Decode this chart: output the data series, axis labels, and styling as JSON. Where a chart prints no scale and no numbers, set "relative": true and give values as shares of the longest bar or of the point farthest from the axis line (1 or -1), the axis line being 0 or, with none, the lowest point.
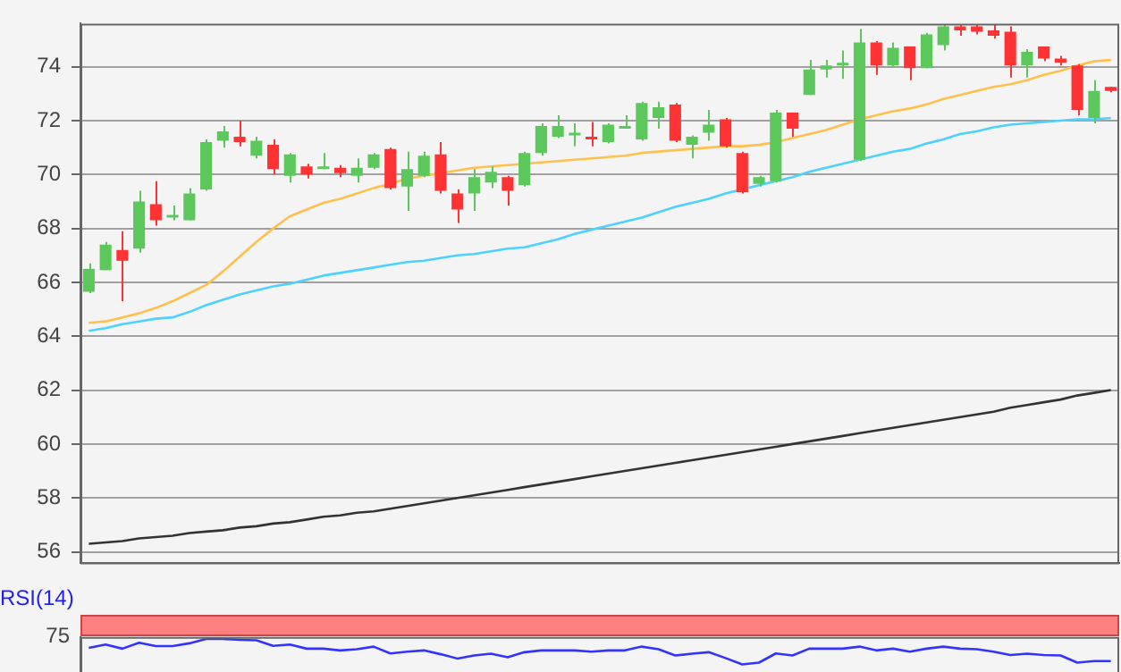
{
  "chart_data": [
    {
      "type": "candlestick",
      "categories": [
        null,
        null,
        null,
        null,
        null,
        null,
        null,
        null,
        null,
        null,
        null,
        null,
        null,
        null,
        null,
        null,
        null,
        null,
        null,
        null,
        null,
        null,
        null,
        null,
        null,
        null,
        null,
        null,
        null,
        null,
        null,
        null,
        null,
        null,
        null,
        null,
        null,
        null,
        null,
        null,
        null,
        null,
        null,
        null,
        null,
        null,
        null,
        null,
        null,
        null,
        null,
        null,
        null,
        null,
        null,
        null,
        null,
        null,
        null,
        null,
        null,
        null
      ],
      "ohlc": [
        [
          65.65,
          66.7,
          65.6,
          66.5
        ],
        [
          66.45,
          67.5,
          66.45,
          67.4
        ],
        [
          67.2,
          67.9,
          65.3,
          66.8
        ],
        [
          67.25,
          69.4,
          67.1,
          69.0
        ],
        [
          68.9,
          69.75,
          68.1,
          68.3
        ],
        [
          68.4,
          68.85,
          68.3,
          68.5
        ],
        [
          68.3,
          69.5,
          68.3,
          69.3
        ],
        [
          69.45,
          71.3,
          69.4,
          71.2
        ],
        [
          71.25,
          71.8,
          71.0,
          71.6
        ],
        [
          71.4,
          72.0,
          71.05,
          71.2
        ],
        [
          70.7,
          71.4,
          70.6,
          71.25
        ],
        [
          71.1,
          71.3,
          70.0,
          70.2
        ],
        [
          69.95,
          70.8,
          69.7,
          70.75
        ],
        [
          70.3,
          70.4,
          69.85,
          70.0
        ],
        [
          70.2,
          70.8,
          70.2,
          70.3
        ],
        [
          70.25,
          70.35,
          69.9,
          70.05
        ],
        [
          69.95,
          70.6,
          69.7,
          70.25
        ],
        [
          70.25,
          70.8,
          70.2,
          70.75
        ],
        [
          70.95,
          71.0,
          69.45,
          69.5
        ],
        [
          69.55,
          70.85,
          68.65,
          70.2
        ],
        [
          69.95,
          70.85,
          69.9,
          70.7
        ],
        [
          70.75,
          71.2,
          69.3,
          69.4
        ],
        [
          69.3,
          69.45,
          68.2,
          68.7
        ],
        [
          69.3,
          70.2,
          68.65,
          69.9
        ],
        [
          69.7,
          70.3,
          69.5,
          70.1
        ],
        [
          69.9,
          69.95,
          68.85,
          69.4
        ],
        [
          69.6,
          70.85,
          69.55,
          70.8
        ],
        [
          70.8,
          71.9,
          70.7,
          71.8
        ],
        [
          71.4,
          72.2,
          71.35,
          71.8
        ],
        [
          71.45,
          71.9,
          71.05,
          71.55
        ],
        [
          71.4,
          71.95,
          71.05,
          71.3
        ],
        [
          71.2,
          71.9,
          71.15,
          71.85
        ],
        [
          71.7,
          72.2,
          71.7,
          71.8
        ],
        [
          71.3,
          72.7,
          71.25,
          72.65
        ],
        [
          72.1,
          72.7,
          71.7,
          72.5
        ],
        [
          72.6,
          72.65,
          71.2,
          71.25
        ],
        [
          71.1,
          71.45,
          70.6,
          71.4
        ],
        [
          71.55,
          72.4,
          71.25,
          71.85
        ],
        [
          72.05,
          72.1,
          71.0,
          71.05
        ],
        [
          70.8,
          70.85,
          69.3,
          69.35
        ],
        [
          69.65,
          69.95,
          69.55,
          69.9
        ],
        [
          69.75,
          72.4,
          69.7,
          72.3
        ],
        [
          72.3,
          72.3,
          71.4,
          71.7
        ],
        [
          72.95,
          74.25,
          72.95,
          73.9
        ],
        [
          73.9,
          74.25,
          73.6,
          74.05
        ],
        [
          74.05,
          74.6,
          73.55,
          74.15
        ],
        [
          70.55,
          75.4,
          70.5,
          74.9
        ],
        [
          74.9,
          74.95,
          73.7,
          74.05
        ],
        [
          74.05,
          74.9,
          74.0,
          74.7
        ],
        [
          74.75,
          74.75,
          73.5,
          73.95
        ],
        [
          73.95,
          75.25,
          73.95,
          75.2
        ],
        [
          74.8,
          75.55,
          74.6,
          75.5
        ],
        [
          75.5,
          75.55,
          75.15,
          75.35
        ],
        [
          75.5,
          75.55,
          75.2,
          75.3
        ],
        [
          75.35,
          75.55,
          75.05,
          75.15
        ],
        [
          75.3,
          75.5,
          73.6,
          74.05
        ],
        [
          74.05,
          74.65,
          73.6,
          74.55
        ],
        [
          74.75,
          74.75,
          74.2,
          74.3
        ],
        [
          74.3,
          74.4,
          74.05,
          74.15
        ],
        [
          74.05,
          74.1,
          72.2,
          72.4
        ],
        [
          72.1,
          73.5,
          71.9,
          73.1
        ],
        [
          73.25,
          73.25,
          73.05,
          73.1
        ]
      ],
      "colors": [
        "#5cc85c",
        "#5cc85c",
        "#ff3333",
        "#5cc85c",
        "#ff3333",
        "#5cc85c",
        "#5cc85c",
        "#5cc85c",
        "#5cc85c",
        "#ff3333",
        "#5cc85c",
        "#ff3333",
        "#5cc85c",
        "#ff3333",
        "#5cc85c",
        "#ff3333",
        "#5cc85c",
        "#5cc85c",
        "#ff3333",
        "#5cc85c",
        "#5cc85c",
        "#ff3333",
        "#ff3333",
        "#5cc85c",
        "#5cc85c",
        "#ff3333",
        "#5cc85c",
        "#5cc85c",
        "#5cc85c",
        "#5cc85c",
        "#ff3333",
        "#5cc85c",
        "#5cc85c",
        "#5cc85c",
        "#5cc85c",
        "#ff3333",
        "#5cc85c",
        "#5cc85c",
        "#ff3333",
        "#ff3333",
        "#5cc85c",
        "#5cc85c",
        "#ff3333",
        "#5cc85c",
        "#5cc85c",
        "#5cc85c",
        "#5cc85c",
        "#ff3333",
        "#5cc85c",
        "#ff3333",
        "#5cc85c",
        "#5cc85c",
        "#ff3333",
        "#ff3333",
        "#ff3333",
        "#ff3333",
        "#5cc85c",
        "#ff3333",
        "#ff3333",
        "#ff3333",
        "#5cc85c",
        "#ff3333"
      ],
      "series": [
        {
          "type": "line",
          "color": "#ffc04c",
          "values": [
            64.5,
            64.55,
            64.7,
            64.85,
            65.05,
            65.3,
            65.6,
            65.9,
            66.4,
            66.95,
            67.5,
            68.0,
            68.45,
            68.7,
            68.95,
            69.1,
            69.3,
            69.5,
            69.65,
            69.85,
            69.95,
            70.05,
            70.15,
            70.25,
            70.3,
            70.35,
            70.4,
            70.45,
            70.5,
            70.55,
            70.6,
            70.65,
            70.7,
            70.8,
            70.85,
            70.9,
            70.95,
            71.0,
            71.05,
            71.05,
            71.1,
            71.2,
            71.35,
            71.5,
            71.65,
            71.85,
            72.05,
            72.2,
            72.35,
            72.45,
            72.6,
            72.8,
            72.95,
            73.1,
            73.25,
            73.35,
            73.5,
            73.7,
            73.85,
            74.05,
            74.2,
            74.25
          ]
        },
        {
          "type": "line",
          "color": "#4dd2ff",
          "values": [
            64.2,
            64.3,
            64.45,
            64.55,
            64.65,
            64.7,
            64.9,
            65.15,
            65.35,
            65.55,
            65.7,
            65.85,
            65.95,
            66.1,
            66.25,
            66.35,
            66.45,
            66.55,
            66.65,
            66.75,
            66.8,
            66.9,
            67.0,
            67.05,
            67.15,
            67.25,
            67.3,
            67.45,
            67.6,
            67.8,
            67.95,
            68.1,
            68.25,
            68.4,
            68.6,
            68.8,
            68.95,
            69.1,
            69.3,
            69.45,
            69.6,
            69.75,
            69.9,
            70.1,
            70.25,
            70.4,
            70.55,
            70.7,
            70.85,
            70.95,
            71.15,
            71.3,
            71.5,
            71.6,
            71.75,
            71.85,
            71.9,
            71.95,
            72.0,
            72.05,
            72.05,
            72.1
          ]
        },
        {
          "type": "line",
          "color": "#333333",
          "values": [
            56.3,
            56.35,
            56.4,
            56.5,
            56.55,
            56.6,
            56.7,
            56.75,
            56.8,
            56.9,
            56.95,
            57.05,
            57.1,
            57.2,
            57.3,
            57.35,
            57.45,
            57.5,
            57.6,
            57.7,
            57.8,
            57.9,
            58.0,
            58.1,
            58.2,
            58.3,
            58.4,
            58.5,
            58.6,
            58.7,
            58.8,
            58.9,
            59.0,
            59.1,
            59.2,
            59.3,
            59.4,
            59.5,
            59.6,
            59.7,
            59.8,
            59.9,
            60.0,
            60.1,
            60.2,
            60.3,
            60.4,
            60.5,
            60.6,
            60.7,
            60.8,
            60.9,
            61.0,
            61.1,
            61.2,
            61.35,
            61.45,
            61.55,
            61.65,
            61.8,
            61.9,
            62.0
          ]
        }
      ],
      "ylim": [
        55.6,
        75.6
      ],
      "yticks": [
        56,
        58,
        60,
        62,
        64,
        66,
        68,
        70,
        72,
        74
      ],
      "grid": "y",
      "tick_labels": "y"
    },
    {
      "type": "line",
      "title": "RSI(14)",
      "categories": [
        null,
        null,
        null,
        null,
        null,
        null,
        null,
        null,
        null,
        null,
        null,
        null,
        null,
        null,
        null,
        null,
        null,
        null,
        null,
        null,
        null,
        null,
        null,
        null,
        null,
        null,
        null,
        null,
        null,
        null,
        null,
        null,
        null,
        null,
        null,
        null,
        null,
        null,
        null,
        null,
        null,
        null,
        null,
        null,
        null,
        null,
        null,
        null,
        null,
        null,
        null,
        null,
        null,
        null,
        null,
        null,
        null,
        null,
        null,
        null,
        null,
        null
      ],
      "series": [
        {
          "color": "#3333ff",
          "values": [
            0.65,
            0.78,
            0.62,
            0.85,
            0.72,
            0.72,
            0.83,
            1,
            1,
            0.97,
            0.95,
            0.73,
            0.78,
            0.62,
            0.62,
            0.55,
            0.6,
            0.7,
            0.43,
            0.5,
            0.55,
            0.4,
            0.23,
            0.35,
            0.42,
            0.28,
            0.48,
            0.55,
            0.55,
            0.55,
            0.5,
            0.55,
            0.55,
            0.7,
            0.6,
            0.35,
            0.42,
            0.48,
            0.25,
            0,
            0.07,
            0.43,
            0.35,
            0.62,
            0.62,
            0.62,
            0.7,
            0.55,
            0.62,
            0.5,
            0.62,
            0.7,
            0.62,
            0.6,
            0.5,
            0.37,
            0.42,
            0.37,
            0.35,
            0.07,
            0.13,
            0.13
          ]
        }
      ],
      "relative": true,
      "annotations": [
        "75"
      ]
    }
  ]
}
